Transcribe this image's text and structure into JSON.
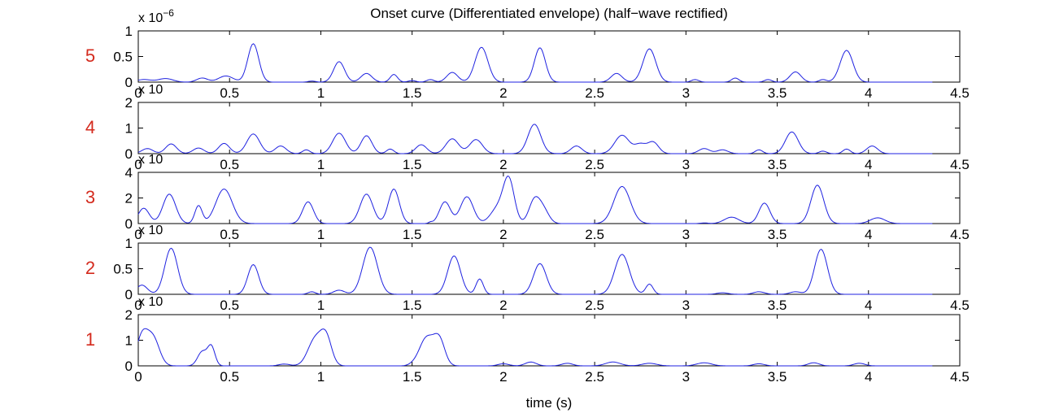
{
  "chart_data": {
    "type": "line",
    "title": "Onset curve (Differentiated envelope) (half−wave rectified)",
    "xlabel": "time (s)",
    "x_ticks": [
      "0",
      "0.5",
      "1",
      "1.5",
      "2",
      "2.5",
      "3",
      "3.5",
      "4",
      "4.5"
    ],
    "xlim": [
      0,
      4.5
    ],
    "line_color": "#1f22e0",
    "band_label_color": "#d42b1e",
    "grid": false,
    "panels": [
      {
        "band_label": "5",
        "exponent_label": "x 10",
        "exponent_power": "−6",
        "ylim": [
          0,
          1
        ],
        "y_ticks": [
          "0",
          "0.5",
          "1"
        ],
        "y_tick_values": [
          0,
          0.5,
          1
        ],
        "peaks": [
          [
            0.03,
            0.05,
            0.04
          ],
          [
            0.15,
            0.07,
            0.04
          ],
          [
            0.35,
            0.08,
            0.03
          ],
          [
            0.48,
            0.12,
            0.04
          ],
          [
            0.63,
            0.75,
            0.03
          ],
          [
            0.95,
            0.02,
            0.02
          ],
          [
            1.1,
            0.4,
            0.03
          ],
          [
            1.25,
            0.17,
            0.03
          ],
          [
            1.4,
            0.15,
            0.02
          ],
          [
            1.5,
            0.03,
            0.02
          ],
          [
            1.6,
            0.05,
            0.02
          ],
          [
            1.72,
            0.19,
            0.03
          ],
          [
            1.88,
            0.68,
            0.035
          ],
          [
            2.2,
            0.67,
            0.03
          ],
          [
            2.62,
            0.17,
            0.03
          ],
          [
            2.8,
            0.65,
            0.035
          ],
          [
            3.05,
            0.05,
            0.02
          ],
          [
            3.27,
            0.08,
            0.02
          ],
          [
            3.45,
            0.05,
            0.02
          ],
          [
            3.6,
            0.2,
            0.03
          ],
          [
            3.75,
            0.05,
            0.02
          ],
          [
            3.88,
            0.62,
            0.035
          ]
        ]
      },
      {
        "band_label": "4",
        "exponent_label": "x 10",
        "exponent_power": "",
        "ylim": [
          0,
          2
        ],
        "y_ticks": [
          "0",
          "1",
          "2"
        ],
        "y_tick_values": [
          0,
          1,
          2
        ],
        "peaks": [
          [
            0.05,
            0.2,
            0.03
          ],
          [
            0.18,
            0.38,
            0.03
          ],
          [
            0.33,
            0.22,
            0.03
          ],
          [
            0.47,
            0.4,
            0.03
          ],
          [
            0.63,
            0.77,
            0.035
          ],
          [
            0.78,
            0.3,
            0.03
          ],
          [
            0.92,
            0.15,
            0.02
          ],
          [
            1.1,
            0.8,
            0.035
          ],
          [
            1.25,
            0.7,
            0.03
          ],
          [
            1.38,
            0.18,
            0.02
          ],
          [
            1.55,
            0.35,
            0.03
          ],
          [
            1.72,
            0.58,
            0.035
          ],
          [
            1.85,
            0.55,
            0.035
          ],
          [
            2.17,
            1.15,
            0.035
          ],
          [
            2.4,
            0.3,
            0.03
          ],
          [
            2.65,
            0.72,
            0.04
          ],
          [
            2.75,
            0.35,
            0.03
          ],
          [
            2.82,
            0.45,
            0.03
          ],
          [
            3.1,
            0.2,
            0.03
          ],
          [
            3.2,
            0.15,
            0.03
          ],
          [
            3.4,
            0.15,
            0.02
          ],
          [
            3.58,
            0.85,
            0.035
          ],
          [
            3.75,
            0.1,
            0.02
          ],
          [
            3.88,
            0.18,
            0.02
          ],
          [
            4.02,
            0.3,
            0.03
          ]
        ]
      },
      {
        "band_label": "3",
        "exponent_label": "x 10",
        "exponent_power": "",
        "ylim": [
          0,
          4
        ],
        "y_ticks": [
          "0",
          "2",
          "4"
        ],
        "y_tick_values": [
          0,
          2,
          4
        ],
        "peaks": [
          [
            0.03,
            1.2,
            0.03
          ],
          [
            0.17,
            2.3,
            0.035
          ],
          [
            0.33,
            1.4,
            0.02
          ],
          [
            0.47,
            2.7,
            0.045
          ],
          [
            0.93,
            1.7,
            0.03
          ],
          [
            1.25,
            2.3,
            0.035
          ],
          [
            1.4,
            2.7,
            0.03
          ],
          [
            1.6,
            0.1,
            0.01
          ],
          [
            1.68,
            1.7,
            0.03
          ],
          [
            1.8,
            2.1,
            0.035
          ],
          [
            1.97,
            1.2,
            0.04
          ],
          [
            2.03,
            3.3,
            0.03
          ],
          [
            2.17,
            1.8,
            0.03
          ],
          [
            2.22,
            1.0,
            0.03
          ],
          [
            2.65,
            2.9,
            0.045
          ],
          [
            3.1,
            0.05,
            0.02
          ],
          [
            3.25,
            0.5,
            0.04
          ],
          [
            3.43,
            1.6,
            0.03
          ],
          [
            3.72,
            3.0,
            0.035
          ],
          [
            4.05,
            0.45,
            0.04
          ]
        ]
      },
      {
        "band_label": "2",
        "exponent_label": "x 10",
        "exponent_power": "",
        "ylim": [
          0,
          1
        ],
        "y_ticks": [
          "0",
          "0.5",
          "1"
        ],
        "y_tick_values": [
          0,
          0.5,
          1
        ],
        "peaks": [
          [
            0.02,
            0.18,
            0.03
          ],
          [
            0.18,
            0.9,
            0.035
          ],
          [
            0.63,
            0.58,
            0.03
          ],
          [
            0.95,
            0.05,
            0.02
          ],
          [
            1.1,
            0.08,
            0.03
          ],
          [
            1.27,
            0.92,
            0.04
          ],
          [
            1.73,
            0.75,
            0.035
          ],
          [
            1.87,
            0.3,
            0.02
          ],
          [
            2.2,
            0.6,
            0.035
          ],
          [
            2.65,
            0.78,
            0.04
          ],
          [
            2.8,
            0.2,
            0.02
          ],
          [
            3.2,
            0.03,
            0.03
          ],
          [
            3.4,
            0.05,
            0.03
          ],
          [
            3.6,
            0.05,
            0.03
          ],
          [
            3.74,
            0.88,
            0.035
          ]
        ]
      },
      {
        "band_label": "1",
        "exponent_label": "x 10",
        "exponent_power": "",
        "ylim": [
          0,
          2
        ],
        "y_ticks": [
          "0",
          "1",
          "2"
        ],
        "y_tick_values": [
          0,
          1,
          2
        ],
        "peaks": [
          [
            0.02,
            1.1,
            0.03
          ],
          [
            0.08,
            1.1,
            0.035
          ],
          [
            0.35,
            0.55,
            0.025
          ],
          [
            0.4,
            0.75,
            0.02
          ],
          [
            0.8,
            0.07,
            0.03
          ],
          [
            0.97,
            1.05,
            0.04
          ],
          [
            1.03,
            1.0,
            0.03
          ],
          [
            1.5,
            0.03,
            0.02
          ],
          [
            1.58,
            1.1,
            0.04
          ],
          [
            1.65,
            0.95,
            0.03
          ],
          [
            2.0,
            0.08,
            0.03
          ],
          [
            2.15,
            0.15,
            0.03
          ],
          [
            2.35,
            0.1,
            0.03
          ],
          [
            2.6,
            0.15,
            0.04
          ],
          [
            2.8,
            0.1,
            0.04
          ],
          [
            3.1,
            0.12,
            0.04
          ],
          [
            3.4,
            0.08,
            0.03
          ],
          [
            3.7,
            0.12,
            0.03
          ],
          [
            3.95,
            0.1,
            0.03
          ]
        ]
      }
    ]
  }
}
